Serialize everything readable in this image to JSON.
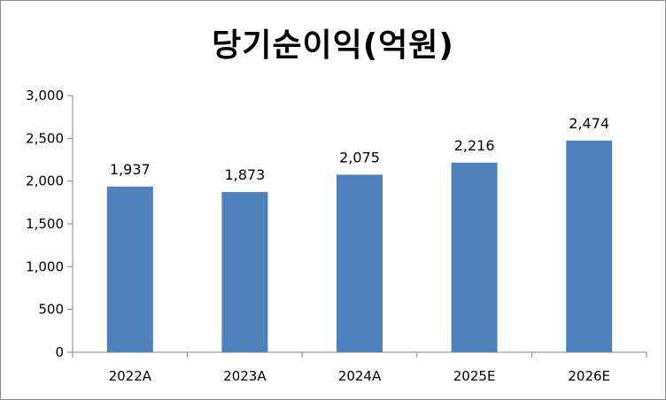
{
  "chart_data": {
    "type": "bar",
    "title": "당기순이익(억원)",
    "categories": [
      "2022A",
      "2023A",
      "2024A",
      "2025E",
      "2026E"
    ],
    "values": [
      1937,
      1873,
      2075,
      2216,
      2474
    ],
    "value_labels": [
      "1,937",
      "1,873",
      "2,075",
      "2,216",
      "2,474"
    ],
    "ylim": [
      0,
      3000
    ],
    "yticks": [
      0,
      500,
      1000,
      1500,
      2000,
      2500,
      3000
    ],
    "ytick_labels": [
      "0",
      "500",
      "1,000",
      "1,500",
      "2,000",
      "2,500",
      "3,000"
    ],
    "grid": false,
    "legend": "none",
    "bar_color": "#4f81bd"
  }
}
